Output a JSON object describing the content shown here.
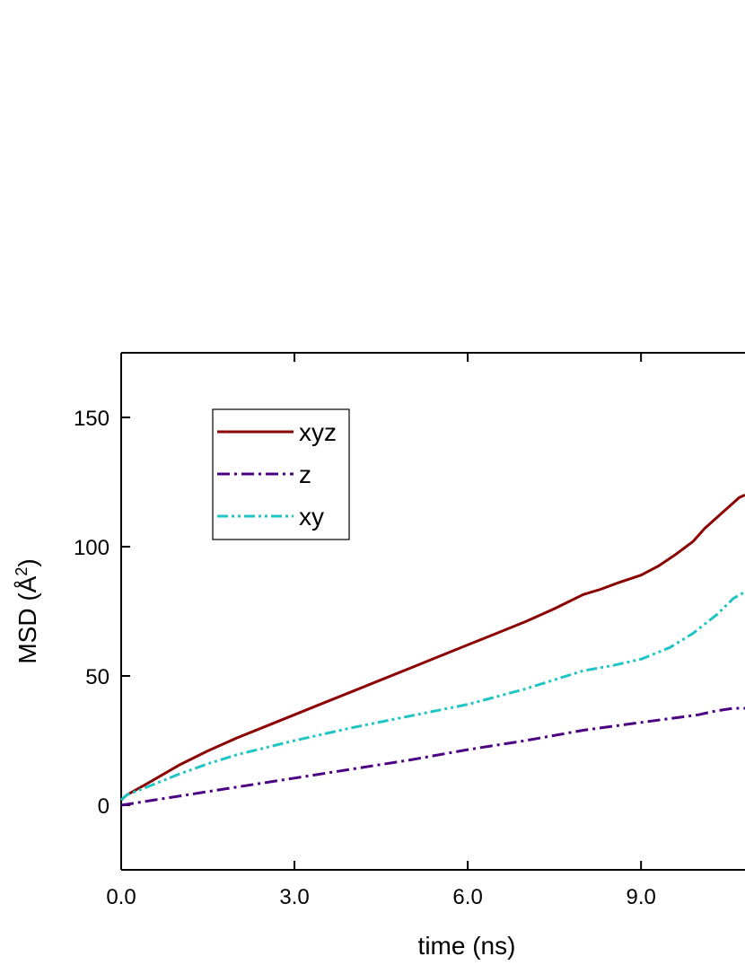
{
  "chart_data": {
    "type": "line",
    "xlabel": "time (ns)",
    "ylabel": "MSD (Å²)",
    "ylabel_parts": {
      "main": "MSD (Å",
      "sup": "2",
      "end": ")"
    },
    "xlim": [
      0,
      10.8
    ],
    "ylim": [
      -25,
      175
    ],
    "x_ticks": [
      0,
      3,
      6,
      9
    ],
    "x_tick_labels": [
      "0.0",
      "3.0",
      "6.0",
      "9.0"
    ],
    "y_ticks": [
      0,
      50,
      100,
      150
    ],
    "y_tick_labels": [
      "0",
      "50",
      "100",
      "150"
    ],
    "legend_position": "upper-left",
    "series": [
      {
        "name": "xyz",
        "color": "#8b0000",
        "dash": "solid",
        "x": [
          0,
          0.1,
          0.5,
          1.0,
          1.5,
          2.0,
          2.5,
          3.0,
          3.5,
          4.0,
          4.5,
          5.0,
          5.5,
          6.0,
          6.5,
          7.0,
          7.5,
          8.0,
          8.3,
          8.6,
          9.0,
          9.3,
          9.6,
          9.9,
          10.1,
          10.3,
          10.5,
          10.7,
          10.8
        ],
        "y": [
          2,
          4,
          9,
          15.5,
          21,
          26,
          30.5,
          35,
          39.5,
          44,
          48.5,
          53,
          57.5,
          62,
          66.5,
          71,
          76,
          81.5,
          83.5,
          86,
          89,
          92.5,
          97,
          102,
          107,
          111,
          115,
          119,
          120
        ]
      },
      {
        "name": "z",
        "color": "#4b0082",
        "dash": "dash-dot",
        "x": [
          0,
          1.0,
          2.0,
          3.0,
          4.0,
          5.0,
          6.0,
          7.0,
          8.0,
          9.0,
          9.5,
          10.0,
          10.3,
          10.6,
          10.8
        ],
        "y": [
          0,
          3.5,
          7,
          10.5,
          14,
          17.5,
          21.5,
          25,
          29,
          32,
          33.5,
          35,
          36.5,
          37.5,
          37.5
        ]
      },
      {
        "name": "xy",
        "color": "#20c4c4",
        "dash": "dash-dot-dot",
        "x": [
          0,
          0.1,
          0.5,
          1.0,
          1.5,
          2.0,
          3.0,
          4.0,
          5.0,
          6.0,
          7.0,
          8.0,
          8.5,
          9.0,
          9.5,
          9.9,
          10.3,
          10.6,
          10.8
        ],
        "y": [
          2,
          4,
          7.5,
          12,
          16,
          19.5,
          25,
          30,
          34.5,
          39,
          45,
          52,
          54,
          56.5,
          61,
          66.5,
          73.5,
          80,
          82.5
        ]
      }
    ]
  }
}
